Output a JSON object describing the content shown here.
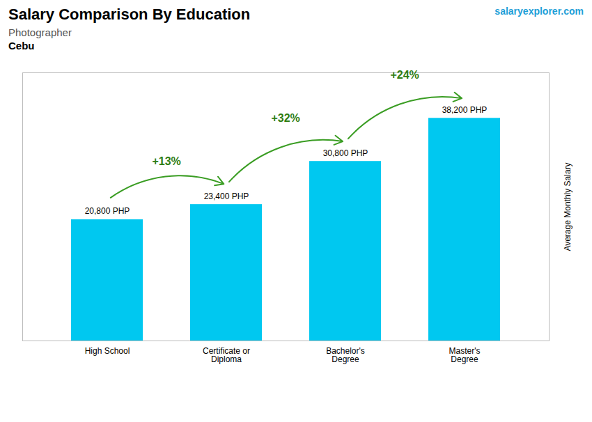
{
  "chart_data": {
    "type": "bar",
    "title": "Salary Comparison By Education",
    "subtitle": "Photographer",
    "location": "Cebu",
    "source": "salaryexplorer.com",
    "ylabel": "Average Monthly Salary",
    "categories": [
      "High School",
      "Certificate or\nDiploma",
      "Bachelor's\nDegree",
      "Master's\nDegree"
    ],
    "values": [
      20800,
      23400,
      30800,
      38200
    ],
    "value_labels": [
      "20,800 PHP",
      "23,400 PHP",
      "30,800 PHP",
      "38,200 PHP"
    ],
    "data_labels": true,
    "arrows": [
      {
        "from": 0,
        "to": 1,
        "label": "+13%"
      },
      {
        "from": 1,
        "to": 2,
        "label": "+32%"
      },
      {
        "from": 2,
        "to": 3,
        "label": "+24%"
      }
    ],
    "color": "#00C8F0",
    "ylim": [
      0,
      46000
    ],
    "tick_labels": "x",
    "grid": false
  }
}
